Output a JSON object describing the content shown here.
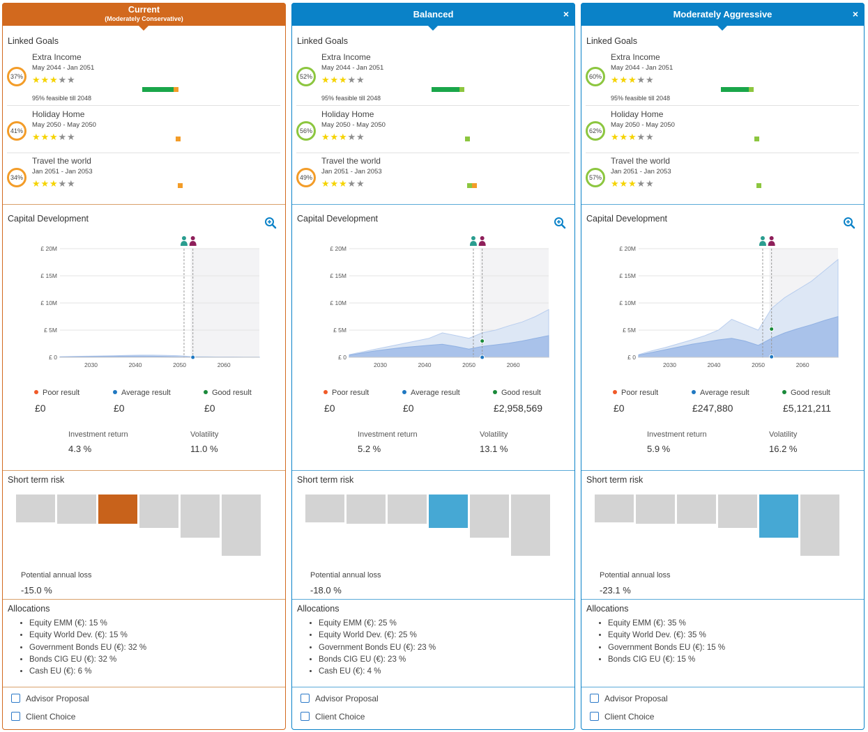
{
  "colors": {
    "current": "#d2691e",
    "proposal": "#0a82c8",
    "ring_orange": "#f39c28",
    "ring_green": "#8cc63f",
    "bar_dark_green": "#1aa64a",
    "bar_light_green": "#8cc63f",
    "bar_orange": "#f39c28",
    "risk_current": "#c8621b",
    "risk_proposal": "#46a8d4",
    "poor": "#f05a28",
    "average": "#1f78c1",
    "good": "#1a8a3a"
  },
  "labels": {
    "linked_goals": "Linked Goals",
    "capital_development": "Capital Development",
    "short_term_risk": "Short term risk",
    "potential_annual_loss": "Potential annual loss",
    "allocations": "Allocations",
    "investment_return": "Investment return",
    "volatility": "Volatility",
    "poor_result": "Poor result",
    "average_result": "Average result",
    "good_result": "Good result",
    "advisor_proposal": "Advisor Proposal",
    "client_choice": "Client Choice",
    "close": "×"
  },
  "goal_names": [
    "Extra Income",
    "Holiday Home",
    "Travel the world"
  ],
  "goal_dates": [
    "May 2044 - Jan 2051",
    "May 2050 - May 2050",
    "Jan 2051 - Jan 2053"
  ],
  "goal_stars": [
    3,
    3,
    3
  ],
  "chart_data": {
    "type": "area",
    "y_ticks": [
      "£ 20M",
      "£ 15M",
      "£ 10M",
      "£ 5M",
      "£ 0"
    ],
    "x_ticks": [
      "2030",
      "2040",
      "2050",
      "2060"
    ],
    "ylim": [
      0,
      20000000
    ],
    "xlim": [
      2023,
      2068
    ]
  },
  "columns": [
    {
      "id": "current",
      "title": "Current",
      "subtitle": "(Moderately Conservative)",
      "closable": false,
      "goals": [
        {
          "pct": "37%",
          "ring": "orange",
          "feasible": "95% feasible till 2048",
          "bar_dark": 0.45,
          "bar_light": 0,
          "bar_orange": 0.07
        },
        {
          "pct": "41%",
          "ring": "orange",
          "bar_dark": 0,
          "bar_light": 0,
          "bar_orange": 0.02
        },
        {
          "pct": "34%",
          "ring": "orange",
          "bar_dark": 0,
          "bar_light": 0,
          "bar_orange": 0.04
        }
      ],
      "results": {
        "poor": "£0",
        "average": "£0",
        "good": "£0"
      },
      "investment_return": "4.3 %",
      "volatility": "11.0 %",
      "risk_selected": 2,
      "potential_loss": "-15.0 %",
      "allocations": [
        "Equity EMM (€): 15 %",
        "Equity World Dev. (€): 15 %",
        "Government Bonds EU (€): 32 %",
        "Bonds CIG EU (€): 32 %",
        "Cash EU (€): 6 %"
      ],
      "series": {
        "upper": [
          0.1,
          0.15,
          0.2,
          0.25,
          0.3,
          0.35,
          0.4,
          0.4,
          0.35,
          0.3,
          0.1,
          0.1,
          0.05,
          0.05,
          0.03,
          0.02
        ],
        "mid": [
          0.08,
          0.1,
          0.12,
          0.15,
          0.18,
          0.2,
          0.22,
          0.2,
          0.15,
          0.1,
          0.05,
          0.03,
          0.02,
          0.02,
          0.01,
          0.01
        ],
        "dot_average": 0,
        "dot_good": null
      }
    },
    {
      "id": "balanced",
      "title": "Balanced",
      "subtitle": "",
      "closable": true,
      "goals": [
        {
          "pct": "52%",
          "ring": "green",
          "feasible": "95% feasible till 2048",
          "bar_dark": 0.4,
          "bar_light": 0.07,
          "bar_orange": 0
        },
        {
          "pct": "56%",
          "ring": "green",
          "bar_dark": 0,
          "bar_light": 0.02,
          "bar_orange": 0
        },
        {
          "pct": "49%",
          "ring": "orange",
          "bar_dark": 0,
          "bar_light": 0.02,
          "bar_orange": 0.02
        }
      ],
      "results": {
        "poor": "£0",
        "average": "£0",
        "good": "£2,958,569"
      },
      "investment_return": "5.2 %",
      "volatility": "13.1 %",
      "risk_selected": 3,
      "potential_loss": "-18.0 %",
      "allocations": [
        "Equity EMM (€): 25 %",
        "Equity World Dev. (€): 25 %",
        "Government Bonds EU (€): 23 %",
        "Bonds CIG EU (€): 23 %",
        "Cash EU (€): 4 %"
      ],
      "series": {
        "upper": [
          0.5,
          1.0,
          1.5,
          2.0,
          2.5,
          3.0,
          3.5,
          4.5,
          4.0,
          3.5,
          4.5,
          5.0,
          5.8,
          6.5,
          7.5,
          8.8
        ],
        "mid": [
          0.4,
          0.8,
          1.2,
          1.5,
          1.8,
          2.0,
          2.2,
          2.4,
          2.0,
          1.5,
          2.0,
          2.3,
          2.6,
          3.0,
          3.5,
          4.0
        ],
        "dot_average": 0,
        "dot_good": 3.0
      }
    },
    {
      "id": "aggressive",
      "title": "Moderately Aggressive",
      "subtitle": "",
      "closable": true,
      "goals": [
        {
          "pct": "60%",
          "ring": "green",
          "feasible": "95% feasible till 2048",
          "bar_dark": 0.4,
          "bar_light": 0.07,
          "bar_orange": 0
        },
        {
          "pct": "62%",
          "ring": "green",
          "bar_dark": 0,
          "bar_light": 0.02,
          "bar_orange": 0
        },
        {
          "pct": "57%",
          "ring": "green",
          "bar_dark": 0,
          "bar_light": 0.05,
          "bar_orange": 0
        }
      ],
      "results": {
        "poor": "£0",
        "average": "£247,880",
        "good": "£5,121,211"
      },
      "investment_return": "5.9 %",
      "volatility": "16.2 %",
      "risk_selected": 4,
      "potential_loss": "-23.1 %",
      "allocations": [
        "Equity EMM (€): 35 %",
        "Equity World Dev. (€): 35 %",
        "Government Bonds EU (€): 15 %",
        "Bonds CIG EU (€): 15 %"
      ],
      "series": {
        "upper": [
          0.5,
          1.2,
          1.8,
          2.5,
          3.2,
          4.0,
          5.0,
          7.0,
          6.0,
          5.0,
          9.0,
          11.0,
          12.5,
          14.0,
          16.0,
          18.0
        ],
        "mid": [
          0.4,
          0.9,
          1.4,
          1.9,
          2.4,
          2.8,
          3.2,
          3.5,
          3.0,
          2.2,
          3.5,
          4.5,
          5.3,
          6.0,
          6.8,
          7.5
        ],
        "dot_average": 0.1,
        "dot_good": 5.2
      }
    }
  ]
}
